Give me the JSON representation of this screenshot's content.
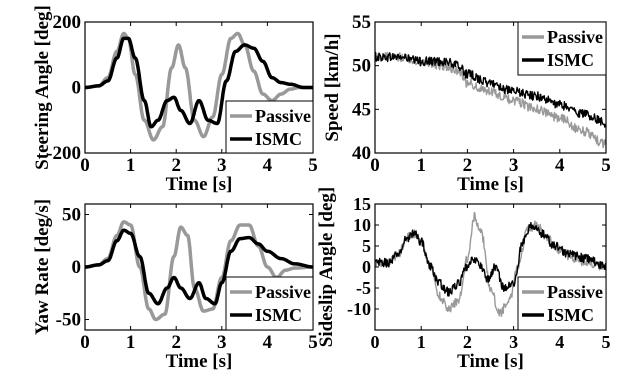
{
  "chart_data": [
    {
      "type": "line",
      "xlabel": "Time [s]",
      "ylabel": "Steering Angle [deg]",
      "xlim": [
        0,
        5
      ],
      "ylim": [
        -200,
        200
      ],
      "xticks": [
        0,
        1,
        2,
        3,
        4,
        5
      ],
      "yticks": [
        -200,
        0,
        200
      ],
      "grid": false,
      "legend": "bottom-right",
      "series": [
        {
          "name": "Passive",
          "color": "#999999",
          "x": [
            0,
            0.3,
            0.5,
            0.7,
            0.85,
            0.95,
            1.1,
            1.3,
            1.5,
            1.7,
            1.9,
            2.05,
            2.2,
            2.4,
            2.6,
            2.8,
            3.0,
            3.2,
            3.35,
            3.5,
            3.7,
            3.9,
            4.1,
            4.3,
            4.5,
            4.7,
            5.0
          ],
          "y": [
            0,
            5,
            30,
            110,
            165,
            150,
            40,
            -100,
            -160,
            -120,
            60,
            130,
            60,
            -100,
            -150,
            -90,
            40,
            150,
            165,
            130,
            50,
            -20,
            -40,
            -20,
            -5,
            0,
            0
          ]
        },
        {
          "name": "ISMC",
          "color": "#000000",
          "x": [
            0,
            0.3,
            0.5,
            0.7,
            0.85,
            0.95,
            1.1,
            1.3,
            1.45,
            1.6,
            1.8,
            1.95,
            2.1,
            2.3,
            2.5,
            2.7,
            2.9,
            3.1,
            3.3,
            3.5,
            3.7,
            3.9,
            4.1,
            4.3,
            4.5,
            4.8,
            5.0
          ],
          "y": [
            0,
            5,
            20,
            90,
            150,
            150,
            90,
            -40,
            -120,
            -100,
            -40,
            -30,
            -70,
            -110,
            -40,
            -100,
            -110,
            20,
            110,
            130,
            120,
            80,
            30,
            15,
            10,
            0,
            0
          ]
        }
      ]
    },
    {
      "type": "line",
      "xlabel": "Time [s]",
      "ylabel": "Speed [km/h]",
      "xlim": [
        0,
        5
      ],
      "ylim": [
        40,
        55
      ],
      "xticks": [
        0,
        1,
        2,
        3,
        4,
        5
      ],
      "yticks": [
        40,
        45,
        50,
        55
      ],
      "grid": false,
      "legend": "top-right",
      "noise": true,
      "series": [
        {
          "name": "Passive",
          "color": "#999999",
          "x": [
            0,
            0.5,
            1.0,
            1.5,
            1.8,
            2.0,
            2.5,
            3.0,
            3.5,
            4.0,
            4.5,
            5.0
          ],
          "y": [
            51,
            51,
            50.5,
            50,
            49.5,
            48,
            47,
            46,
            45,
            44,
            42.5,
            41
          ]
        },
        {
          "name": "ISMC",
          "color": "#000000",
          "x": [
            0,
            0.5,
            1.0,
            1.5,
            1.8,
            2.0,
            2.5,
            3.0,
            3.5,
            4.0,
            4.5,
            5.0
          ],
          "y": [
            51,
            51,
            50.5,
            50.5,
            50,
            49,
            48,
            47,
            46.5,
            45.5,
            44.5,
            43.5
          ]
        }
      ]
    },
    {
      "type": "line",
      "xlabel": "Time [s]",
      "ylabel": "Yaw Rate [deg/s]",
      "xlim": [
        0,
        5
      ],
      "ylim": [
        -60,
        60
      ],
      "xticks": [
        0,
        1,
        2,
        3,
        4,
        5
      ],
      "yticks": [
        -50,
        0,
        50
      ],
      "grid": false,
      "legend": "bottom-right",
      "series": [
        {
          "name": "Passive",
          "color": "#999999",
          "x": [
            0,
            0.3,
            0.5,
            0.7,
            0.85,
            1.0,
            1.2,
            1.4,
            1.55,
            1.75,
            1.95,
            2.1,
            2.25,
            2.4,
            2.6,
            2.8,
            3.0,
            3.2,
            3.4,
            3.6,
            3.8,
            4.0,
            4.2,
            4.4,
            4.6,
            5.0
          ],
          "y": [
            0,
            2,
            8,
            30,
            43,
            40,
            0,
            -40,
            -50,
            -45,
            10,
            38,
            30,
            -20,
            -42,
            -40,
            -10,
            25,
            40,
            40,
            20,
            0,
            -10,
            -3,
            -1,
            0
          ]
        },
        {
          "name": "ISMC",
          "color": "#000000",
          "x": [
            0,
            0.3,
            0.5,
            0.7,
            0.85,
            1.0,
            1.2,
            1.4,
            1.6,
            1.8,
            1.95,
            2.1,
            2.3,
            2.5,
            2.65,
            2.85,
            3.0,
            3.2,
            3.4,
            3.6,
            3.8,
            4.0,
            4.3,
            4.6,
            5.0
          ],
          "y": [
            0,
            2,
            6,
            25,
            35,
            32,
            10,
            -25,
            -35,
            -20,
            -10,
            -20,
            -30,
            -15,
            -30,
            -35,
            -15,
            15,
            27,
            28,
            22,
            15,
            8,
            3,
            0
          ]
        }
      ]
    },
    {
      "type": "line",
      "xlabel": "Time [s]",
      "ylabel": "Sideslip Angle [deg]",
      "xlim": [
        0,
        5
      ],
      "ylim": [
        -15,
        15
      ],
      "xticks": [
        0,
        1,
        2,
        3,
        4,
        5
      ],
      "yticks": [
        -10,
        -5,
        0,
        5,
        10,
        15
      ],
      "grid": false,
      "legend": "bottom-right",
      "noise": true,
      "series": [
        {
          "name": "Passive",
          "color": "#999999",
          "x": [
            0,
            0.3,
            0.5,
            0.7,
            0.85,
            1.0,
            1.2,
            1.4,
            1.6,
            1.8,
            2.0,
            2.15,
            2.3,
            2.5,
            2.7,
            2.9,
            3.1,
            3.3,
            3.5,
            3.7,
            4.0,
            4.3,
            4.6,
            5.0
          ],
          "y": [
            1,
            1,
            3,
            7,
            8,
            6,
            0,
            -7,
            -10,
            -8,
            2,
            12,
            8,
            -5,
            -11,
            -8,
            0,
            9,
            10,
            7,
            4,
            2,
            1,
            0
          ]
        },
        {
          "name": "ISMC",
          "color": "#000000",
          "x": [
            0,
            0.3,
            0.5,
            0.7,
            0.85,
            1.0,
            1.2,
            1.4,
            1.6,
            1.8,
            2.0,
            2.15,
            2.3,
            2.45,
            2.6,
            2.8,
            3.0,
            3.2,
            3.4,
            3.6,
            3.9,
            4.2,
            4.6,
            5.0
          ],
          "y": [
            1,
            1,
            3,
            7,
            8,
            6,
            0,
            -4,
            -6,
            -4,
            0,
            2,
            0,
            -3,
            0,
            -5,
            -4,
            6,
            10,
            8,
            5,
            3,
            2,
            0
          ]
        }
      ]
    }
  ]
}
